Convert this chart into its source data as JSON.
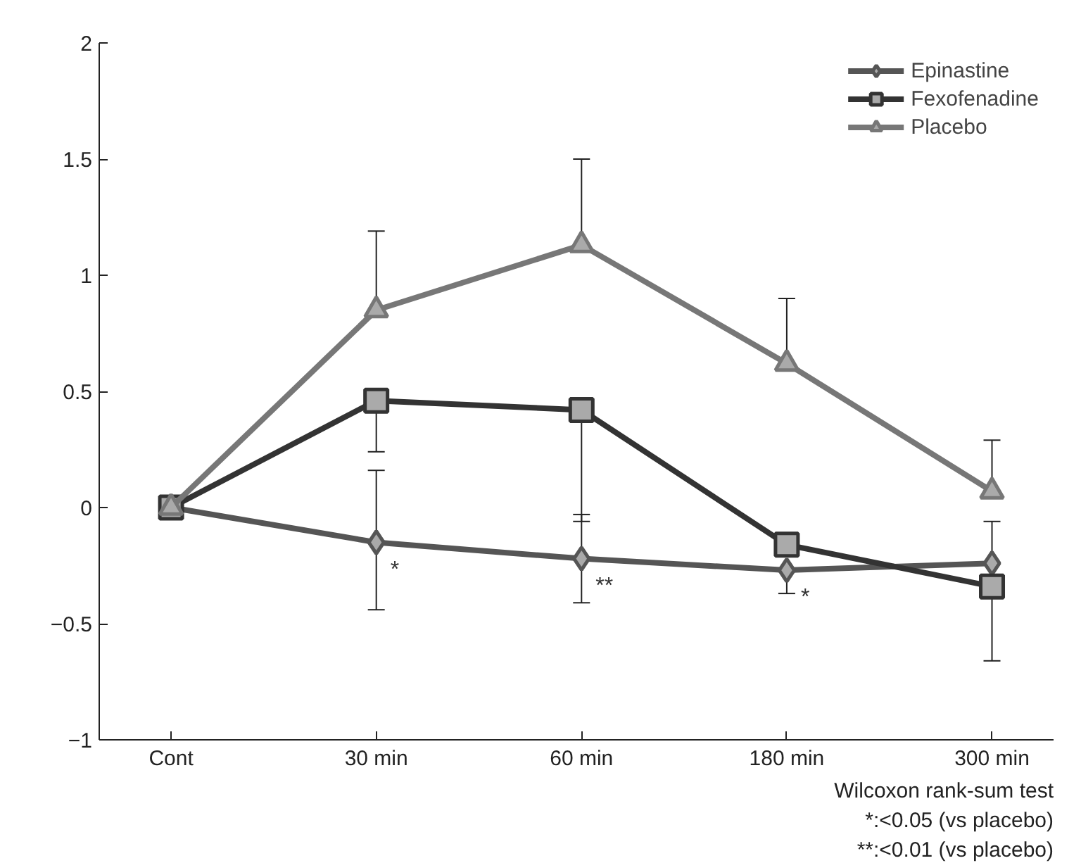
{
  "chart_data": {
    "type": "line",
    "categories": [
      "Cont",
      "30 min",
      "60 min",
      "180 min",
      "300 min"
    ],
    "series": [
      {
        "name": "Epinastine",
        "color": "#555555",
        "marker": "diamond",
        "values": [
          0,
          -0.15,
          -0.22,
          -0.27,
          -0.24
        ],
        "errors": [
          null,
          [
            -0.44,
            0.16
          ],
          [
            -0.41,
            -0.03
          ],
          [
            -0.37,
            -0.27
          ],
          [
            -0.24,
            -0.06
          ]
        ]
      },
      {
        "name": "Fexofenadine",
        "color": "#333333",
        "marker": "square",
        "values": [
          0,
          0.46,
          0.42,
          -0.16,
          -0.34
        ],
        "errors": [
          null,
          [
            0.24,
            0.46
          ],
          [
            -0.06,
            0.42
          ],
          null,
          [
            -0.66,
            -0.34
          ]
        ]
      },
      {
        "name": "Placebo",
        "color": "#777777",
        "marker": "triangle",
        "values": [
          0,
          0.85,
          1.13,
          0.62,
          0.07
        ],
        "errors": [
          null,
          [
            0.85,
            1.19
          ],
          [
            1.13,
            1.5
          ],
          [
            0.62,
            0.9
          ],
          [
            0.07,
            0.29
          ]
        ]
      }
    ],
    "ylim": [
      -1,
      2
    ],
    "yticks": [
      {
        "value": -1,
        "label": "−1"
      },
      {
        "value": -0.5,
        "label": "−0.5"
      },
      0,
      0.5,
      1,
      1.5,
      2
    ],
    "grid": false,
    "legend": "top right",
    "line_style": "solid",
    "annotations": [
      {
        "text": "*",
        "x": "30 min",
        "y": -0.15
      },
      {
        "text": "**",
        "x": "60 min",
        "y": -0.22
      },
      {
        "text": "*",
        "x": "180 min",
        "y": -0.27
      },
      "Wilcoxon rank-sum test",
      "*:<0.05 (vs placebo)",
      "**:<0.01 (vs placebo)"
    ]
  }
}
